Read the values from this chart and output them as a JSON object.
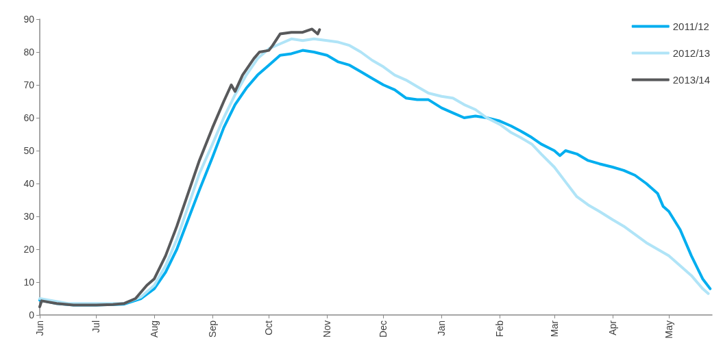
{
  "chart_data": {
    "type": "line",
    "xlim": [
      "2011-06-01",
      "2012-05-24"
    ],
    "xticks": [
      {
        "value": "2011-06-01",
        "label": "Jun"
      },
      {
        "value": "2011-07-01",
        "label": "Jul"
      },
      {
        "value": "2011-08-01",
        "label": "Aug"
      },
      {
        "value": "2011-09-01",
        "label": "Sep"
      },
      {
        "value": "2011-10-01",
        "label": "Oct"
      },
      {
        "value": "2011-11-01",
        "label": "Nov"
      },
      {
        "value": "2011-12-01",
        "label": "Dec"
      },
      {
        "value": "2012-01-01",
        "label": "Jan"
      },
      {
        "value": "2012-02-01",
        "label": "Feb"
      },
      {
        "value": "2012-03-01",
        "label": "Mar"
      },
      {
        "value": "2012-04-01",
        "label": "Apr"
      },
      {
        "value": "2012-05-01",
        "label": "May"
      }
    ],
    "ylim": [
      0,
      90
    ],
    "yticks": [
      0,
      10,
      20,
      30,
      40,
      50,
      60,
      70,
      80,
      90
    ],
    "grid": false,
    "legend": "top right",
    "marker": "none",
    "line_style": "solid",
    "series": [
      {
        "name": "2011/12",
        "color": "#00aeef",
        "x": [
          "2011-06-01",
          "2011-06-10",
          "2011-06-19",
          "2011-07-01",
          "2011-07-16",
          "2011-07-25",
          "2011-08-01",
          "2011-08-07",
          "2011-08-13",
          "2011-08-19",
          "2011-08-25",
          "2011-09-01",
          "2011-09-07",
          "2011-09-13",
          "2011-09-19",
          "2011-09-25",
          "2011-10-01",
          "2011-10-07",
          "2011-10-13",
          "2011-10-19",
          "2011-10-25",
          "2011-11-01",
          "2011-11-07",
          "2011-11-13",
          "2011-11-19",
          "2011-11-25",
          "2011-12-01",
          "2011-12-07",
          "2011-12-13",
          "2011-12-19",
          "2011-12-25",
          "2012-01-01",
          "2012-01-07",
          "2012-01-13",
          "2012-01-19",
          "2012-01-25",
          "2012-02-01",
          "2012-02-07",
          "2012-02-12",
          "2012-02-18",
          "2012-02-23",
          "2012-03-01",
          "2012-03-04",
          "2012-03-07",
          "2012-03-13",
          "2012-03-19",
          "2012-03-25",
          "2012-04-01",
          "2012-04-07",
          "2012-04-13",
          "2012-04-19",
          "2012-04-25",
          "2012-04-28",
          "2012-05-01",
          "2012-05-07",
          "2012-05-13",
          "2012-05-19",
          "2012-05-23"
        ],
        "values": [
          4.5,
          3.5,
          3,
          3,
          3.3,
          5,
          8,
          13,
          20,
          29,
          38,
          48,
          57,
          64,
          69,
          73,
          76,
          79,
          79.5,
          80.5,
          80,
          79,
          77,
          76,
          74,
          72,
          70,
          68.5,
          66,
          65.5,
          65.5,
          63,
          61.5,
          60,
          60.5,
          60,
          59,
          57.5,
          56,
          54,
          52,
          50,
          48.5,
          50,
          49,
          47,
          46,
          45,
          44,
          42.5,
          40,
          37,
          33,
          31.5,
          26,
          18,
          11,
          8
        ]
      },
      {
        "name": "2012/13",
        "color": "#b0e4f7",
        "x": [
          "2011-06-01",
          "2011-06-16",
          "2011-07-16",
          "2011-07-25",
          "2011-08-01",
          "2011-08-07",
          "2011-08-13",
          "2011-08-19",
          "2011-08-25",
          "2011-09-01",
          "2011-09-07",
          "2011-09-13",
          "2011-09-19",
          "2011-09-25",
          "2011-10-01",
          "2011-10-07",
          "2011-10-13",
          "2011-10-19",
          "2011-10-25",
          "2011-11-01",
          "2011-11-07",
          "2011-11-13",
          "2011-11-19",
          "2011-11-25",
          "2011-12-01",
          "2011-12-07",
          "2011-12-13",
          "2011-12-19",
          "2011-12-25",
          "2012-01-01",
          "2012-01-07",
          "2012-01-13",
          "2012-01-19",
          "2012-01-25",
          "2012-02-01",
          "2012-02-07",
          "2012-02-12",
          "2012-02-18",
          "2012-02-23",
          "2012-03-01",
          "2012-03-07",
          "2012-03-13",
          "2012-03-19",
          "2012-03-25",
          "2012-04-01",
          "2012-04-07",
          "2012-04-13",
          "2012-04-19",
          "2012-04-25",
          "2012-05-01",
          "2012-05-07",
          "2012-05-13",
          "2012-05-19",
          "2012-05-22"
        ],
        "values": [
          5,
          3.5,
          3.5,
          5.5,
          9,
          15,
          23,
          33,
          43,
          52,
          60,
          67,
          73,
          78,
          81,
          82.5,
          84,
          83.5,
          84,
          83.5,
          83,
          82,
          80,
          77.5,
          75.5,
          73,
          71.5,
          69.5,
          67.5,
          66.5,
          66,
          64,
          62.5,
          60,
          58,
          55.5,
          54,
          52,
          49,
          45,
          40.5,
          36,
          33.5,
          31.5,
          29,
          27,
          24.5,
          22,
          20,
          18,
          15,
          12,
          8,
          6.5
        ]
      },
      {
        "name": "2013/14",
        "color": "#58595b",
        "x": [
          "2011-06-01",
          "2011-06-02",
          "2011-06-10",
          "2011-06-19",
          "2011-07-01",
          "2011-07-10",
          "2011-07-16",
          "2011-07-22",
          "2011-07-28",
          "2011-08-01",
          "2011-08-07",
          "2011-08-13",
          "2011-08-19",
          "2011-08-25",
          "2011-09-01",
          "2011-09-07",
          "2011-09-11",
          "2011-09-13",
          "2011-09-17",
          "2011-09-23",
          "2011-09-26",
          "2011-10-01",
          "2011-10-03",
          "2011-10-07",
          "2011-10-13",
          "2011-10-19",
          "2011-10-24",
          "2011-10-27",
          "2011-10-28"
        ],
        "values": [
          2.5,
          4.3,
          3.5,
          3,
          3,
          3.2,
          3.5,
          5,
          9,
          11,
          18,
          27,
          37,
          47,
          57,
          65,
          70,
          68,
          73,
          78,
          80,
          80.5,
          82,
          85.5,
          86,
          86,
          87,
          85.5,
          86.8
        ]
      }
    ]
  }
}
